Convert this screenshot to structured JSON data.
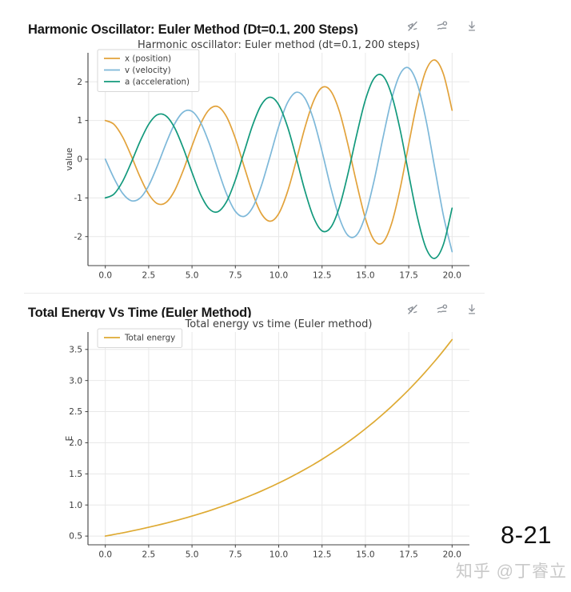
{
  "panels": [
    {
      "heading": "Harmonic Oscillator: Euler Method (Dt=0.1, 200 Steps)",
      "toolbar_icons": [
        "interaction-off-icon",
        "trend-options-icon",
        "download-icon"
      ]
    },
    {
      "heading": "Total Energy Vs Time (Euler Method)",
      "toolbar_icons": [
        "interaction-off-icon",
        "trend-options-icon",
        "download-icon"
      ]
    }
  ],
  "footer": {
    "page_number": "8-21",
    "watermark": "知乎 @丁睿立"
  },
  "colors": {
    "grid": "#e8e8e8",
    "spine": "#404040",
    "tick_label": "#3c3c3c",
    "title": "#3c3c3c",
    "legend_border": "#d7d7d7"
  },
  "chart_data": [
    {
      "type": "line",
      "title": "Harmonic oscillator: Euler method (dt=0.1, 200 steps)",
      "xlabel": "",
      "ylabel": "value",
      "xlim": [
        -1,
        21
      ],
      "ylim": [
        -2.75,
        2.75
      ],
      "grid": true,
      "legend_position": "upper-left",
      "x_ticks": [
        0,
        2.5,
        5,
        7.5,
        10,
        12.5,
        15,
        17.5,
        20
      ],
      "x_tick_labels": [
        "0.0",
        "2.5",
        "5.0",
        "7.5",
        "10.0",
        "12.5",
        "15.0",
        "17.5",
        "20.0"
      ],
      "y_ticks": [
        -2,
        -1,
        0,
        1,
        2
      ],
      "y_tick_labels": [
        "-2",
        "-1",
        "0",
        "1",
        "2"
      ],
      "x": [
        0,
        0.5,
        1,
        1.5,
        2,
        2.5,
        3,
        3.5,
        4,
        4.5,
        5,
        5.5,
        6,
        6.5,
        7,
        7.5,
        8,
        8.5,
        9,
        9.5,
        10,
        10.5,
        11,
        11.5,
        12,
        12.5,
        13,
        13.5,
        14,
        14.5,
        15,
        15.5,
        16,
        16.5,
        17,
        17.5,
        18,
        18.5,
        19,
        19.5,
        20
      ],
      "series": [
        {
          "name": "x (position)",
          "color": "#e2a23a",
          "values": [
            1.0,
            0.901,
            0.571,
            0.082,
            -0.453,
            -0.902,
            -1.148,
            -1.119,
            -0.81,
            -0.282,
            0.343,
            0.915,
            1.287,
            1.356,
            1.089,
            0.537,
            -0.178,
            -0.884,
            -1.406,
            -1.603,
            -1.409,
            -0.853,
            -0.055,
            0.797,
            1.493,
            1.852,
            1.766,
            1.234,
            0.366,
            -0.637,
            -1.532,
            -2.09,
            -2.154,
            -1.682,
            -0.766,
            0.388,
            1.504,
            2.301,
            2.564,
            2.199,
            1.265
          ]
        },
        {
          "name": "v (velocity)",
          "color": "#7db8d9",
          "values": [
            0.0,
            -0.49,
            -0.883,
            -1.074,
            -1.007,
            -0.685,
            -0.175,
            0.405,
            0.913,
            1.219,
            1.236,
            0.945,
            0.402,
            -0.268,
            -0.906,
            -1.349,
            -1.478,
            -1.244,
            -0.687,
            0.07,
            0.848,
            1.454,
            1.728,
            1.583,
            1.035,
            0.2,
            -0.727,
            -1.52,
            -1.973,
            -1.956,
            -1.45,
            -0.554,
            0.525,
            1.528,
            2.2,
            2.357,
            1.932,
            1.003,
            -0.225,
            -1.459,
            -2.391
          ]
        },
        {
          "name": "a (acceleration)",
          "color": "#12997c",
          "values": [
            -1.0,
            -0.901,
            -0.571,
            -0.082,
            0.453,
            0.902,
            1.148,
            1.119,
            0.81,
            0.282,
            -0.343,
            -0.915,
            -1.287,
            -1.356,
            -1.089,
            -0.537,
            0.178,
            0.884,
            1.406,
            1.603,
            1.409,
            0.853,
            0.055,
            -0.797,
            -1.493,
            -1.852,
            -1.766,
            -1.234,
            -0.366,
            0.637,
            1.532,
            2.09,
            2.154,
            1.682,
            0.766,
            -0.388,
            -1.504,
            -2.301,
            -2.564,
            -2.199,
            -1.265
          ]
        }
      ]
    },
    {
      "type": "line",
      "title": "Total energy vs time (Euler method)",
      "xlabel": "",
      "ylabel": "E",
      "xlim": [
        -1,
        21
      ],
      "ylim": [
        0.36,
        3.78
      ],
      "grid": true,
      "legend_position": "upper-left",
      "x_ticks": [
        0,
        2.5,
        5,
        7.5,
        10,
        12.5,
        15,
        17.5,
        20
      ],
      "x_tick_labels": [
        "0.0",
        "2.5",
        "5.0",
        "7.5",
        "10.0",
        "12.5",
        "15.0",
        "17.5",
        "20.0"
      ],
      "y_ticks": [
        0.5,
        1.0,
        1.5,
        2.0,
        2.5,
        3.0,
        3.5
      ],
      "y_tick_labels": [
        "0.5",
        "1.0",
        "1.5",
        "2.0",
        "2.5",
        "3.0",
        "3.5"
      ],
      "x": [
        0,
        0.5,
        1,
        1.5,
        2,
        2.5,
        3,
        3.5,
        4,
        4.5,
        5,
        5.5,
        6,
        6.5,
        7,
        7.5,
        8,
        8.5,
        9,
        9.5,
        10,
        10.5,
        11,
        11.5,
        12,
        12.5,
        13,
        13.5,
        14,
        14.5,
        15,
        15.5,
        16,
        16.5,
        17,
        17.5,
        18,
        18.5,
        19,
        19.5,
        20
      ],
      "series": [
        {
          "name": "Total energy",
          "color": "#deaa33",
          "values": [
            0.5,
            0.526,
            0.552,
            0.581,
            0.61,
            0.641,
            0.674,
            0.708,
            0.744,
            0.782,
            0.822,
            0.864,
            0.908,
            0.955,
            1.003,
            1.055,
            1.108,
            1.165,
            1.224,
            1.287,
            1.352,
            1.421,
            1.494,
            1.57,
            1.65,
            1.734,
            1.823,
            1.916,
            2.013,
            2.116,
            2.224,
            2.338,
            2.457,
            2.582,
            2.714,
            2.852,
            2.998,
            3.151,
            3.311,
            3.48,
            3.658
          ]
        }
      ]
    }
  ]
}
